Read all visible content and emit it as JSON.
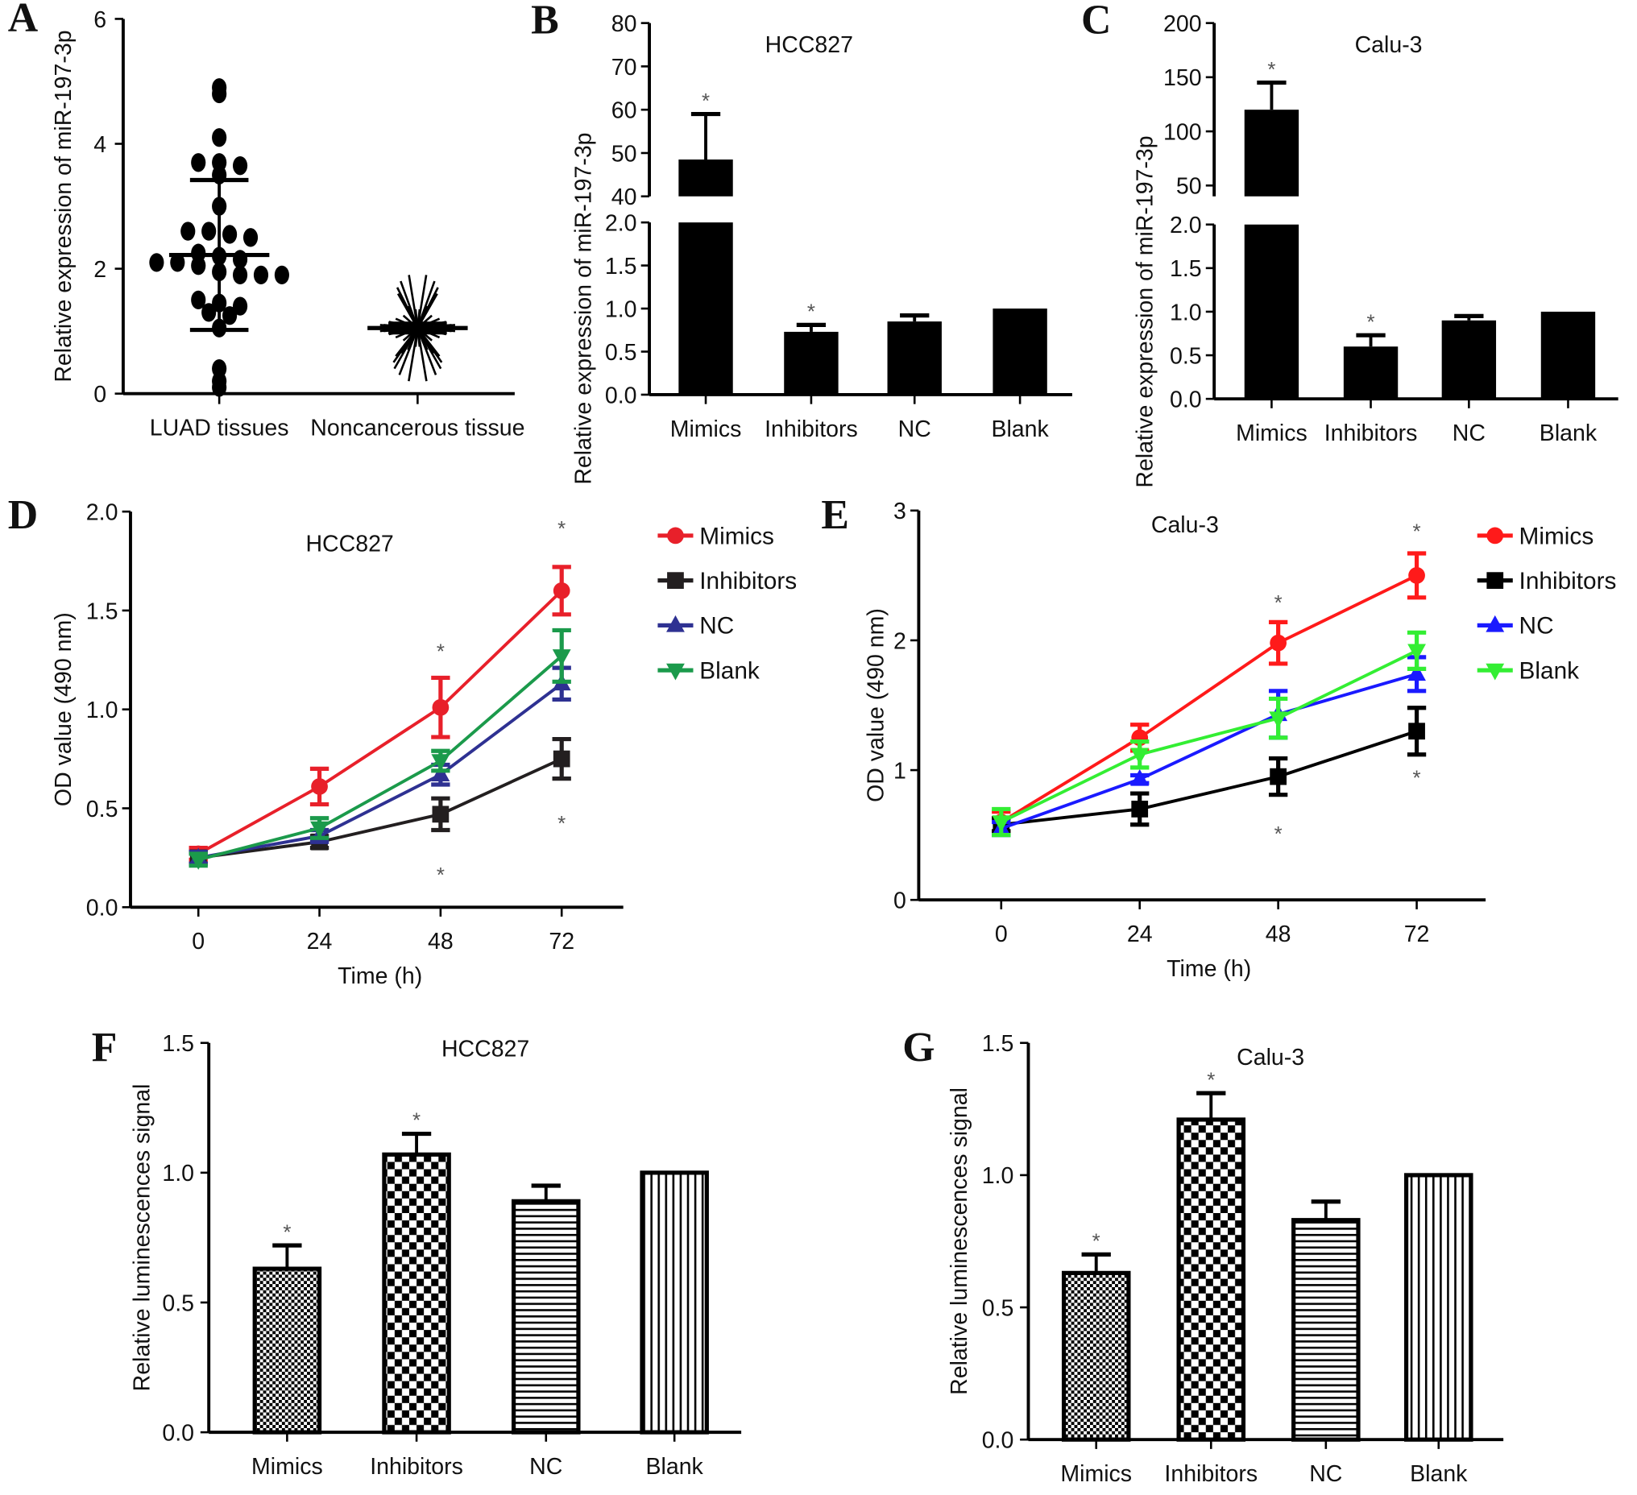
{
  "chart_data": [
    {
      "panel_label": "A",
      "type": "scatter",
      "title": "",
      "xlabel": "",
      "ylabel": "Relative expression of miR-197-3p",
      "ylim": [
        0,
        6
      ],
      "yticks": [
        "0",
        "2",
        "4",
        "6"
      ],
      "categories": [
        "LUAD tissues",
        "Noncancerous tissue"
      ],
      "groups": [
        {
          "name": "LUAD tissues",
          "mean": 2.22,
          "sd_upper": 3.42,
          "sd_lower": 1.02,
          "values": [
            4.9,
            4.8,
            4.1,
            3.7,
            3.7,
            3.65,
            3.5,
            3.0,
            2.6,
            2.6,
            2.55,
            2.5,
            2.25,
            2.2,
            2.15,
            2.1,
            2.1,
            2.05,
            1.95,
            1.9,
            1.9,
            1.9,
            1.5,
            1.45,
            1.4,
            1.3,
            1.25,
            1.05,
            0.4,
            0.2,
            0.1
          ]
        },
        {
          "name": "Noncancerous tissue",
          "mean": 1.05,
          "sd_upper": 1.12,
          "sd_lower": 0.98,
          "values": [
            0.2,
            0.3,
            0.4,
            0.5,
            0.6,
            0.65,
            0.7,
            0.75,
            0.8,
            0.85,
            0.9,
            0.95,
            1.0,
            1.0,
            1.05,
            1.05,
            1.1,
            1.1,
            1.15,
            1.2,
            1.25,
            1.3,
            1.35,
            1.4,
            1.5,
            1.6,
            1.7,
            1.8,
            1.9
          ]
        }
      ],
      "marker_color": "#000000"
    },
    {
      "panel_label": "B",
      "type": "bar",
      "title": "HCC827",
      "broken_axis": true,
      "xlabel": "",
      "ylabel": "Relative expression of miR-197-3p",
      "ylim_lower": [
        0,
        2.0
      ],
      "ylim_upper": [
        40,
        80
      ],
      "yticks_lower": [
        "0.0",
        "0.5",
        "1.0",
        "1.5",
        "2.0"
      ],
      "yticks_upper": [
        "40",
        "50",
        "60",
        "70",
        "80"
      ],
      "categories": [
        "Mimics",
        "Inhibitors",
        "NC",
        "Blank"
      ],
      "values": [
        48.5,
        0.73,
        0.85,
        1.0
      ],
      "errors": [
        10.5,
        0.08,
        0.07,
        0
      ],
      "significant": [
        true,
        true,
        false,
        false
      ],
      "annotation": "*",
      "fill": "solid",
      "bar_color": "#000000"
    },
    {
      "panel_label": "C",
      "type": "bar",
      "title": "Calu-3",
      "broken_axis": true,
      "xlabel": "",
      "ylabel": "Relative expression of miR-197-3p",
      "ylim_lower": [
        0,
        2.0
      ],
      "ylim_upper": [
        40,
        200
      ],
      "yticks_lower": [
        "0.0",
        "0.5",
        "1.0",
        "1.5",
        "2.0"
      ],
      "yticks_upper": [
        "50",
        "100",
        "150",
        "200"
      ],
      "categories": [
        "Mimics",
        "Inhibitors",
        "NC",
        "Blank"
      ],
      "values": [
        120,
        0.6,
        0.9,
        1.0
      ],
      "errors": [
        25,
        0.13,
        0.05,
        0
      ],
      "significant": [
        true,
        true,
        false,
        false
      ],
      "annotation": "*",
      "fill": "solid",
      "bar_color": "#000000"
    },
    {
      "panel_label": "D",
      "type": "line",
      "title": "HCC827",
      "xlabel": "Time (h)",
      "ylabel": "OD value (490 nm)",
      "x": [
        0,
        24,
        48,
        72
      ],
      "xticks": [
        "0",
        "24",
        "48",
        "72"
      ],
      "ylim": [
        0,
        2.0
      ],
      "yticks": [
        "0.0",
        "0.5",
        "1.0",
        "1.5",
        "2.0"
      ],
      "legend_position": "right",
      "series": [
        {
          "name": "Mimics",
          "color": "#e8202a",
          "marker": "circle",
          "values": [
            0.27,
            0.61,
            1.01,
            1.6
          ],
          "errors": [
            0.03,
            0.09,
            0.15,
            0.12
          ]
        },
        {
          "name": "Inhibitors",
          "color": "#231f20",
          "marker": "square",
          "values": [
            0.25,
            0.33,
            0.47,
            0.75
          ],
          "errors": [
            0.03,
            0.03,
            0.08,
            0.1
          ]
        },
        {
          "name": "NC",
          "color": "#2e3192",
          "marker": "triangle-up",
          "values": [
            0.25,
            0.36,
            0.67,
            1.13
          ],
          "errors": [
            0.03,
            0.03,
            0.05,
            0.08
          ]
        },
        {
          "name": "Blank",
          "color": "#1b9a4b",
          "marker": "triangle-down",
          "values": [
            0.24,
            0.4,
            0.74,
            1.27
          ],
          "errors": [
            0.03,
            0.05,
            0.05,
            0.13
          ]
        }
      ],
      "annotations": [
        {
          "text": "*",
          "x": 48,
          "y": 1.3
        },
        {
          "text": "*",
          "x": 48,
          "y": 0.17
        },
        {
          "text": "*",
          "x": 72,
          "y": 1.92
        },
        {
          "text": "*",
          "x": 72,
          "y": 0.43
        }
      ]
    },
    {
      "panel_label": "E",
      "type": "line",
      "title": "Calu-3",
      "xlabel": "Time (h)",
      "ylabel": "OD value (490 nm)",
      "x": [
        0,
        24,
        48,
        72
      ],
      "xticks": [
        "0",
        "24",
        "48",
        "72"
      ],
      "ylim": [
        0,
        3
      ],
      "yticks": [
        "0",
        "1",
        "2",
        "3"
      ],
      "legend_position": "right",
      "series": [
        {
          "name": "Mimics",
          "color": "#ff1a1a",
          "marker": "circle",
          "values": [
            0.6,
            1.25,
            1.98,
            2.5
          ],
          "errors": [
            0.08,
            0.1,
            0.16,
            0.17
          ]
        },
        {
          "name": "Inhibitors",
          "color": "#000000",
          "marker": "square",
          "values": [
            0.58,
            0.7,
            0.95,
            1.3
          ],
          "errors": [
            0.05,
            0.12,
            0.14,
            0.18
          ]
        },
        {
          "name": "NC",
          "color": "#1a1aff",
          "marker": "triangle-up",
          "values": [
            0.55,
            0.93,
            1.43,
            1.74
          ],
          "errors": [
            0.05,
            0.03,
            0.18,
            0.13
          ]
        },
        {
          "name": "Blank",
          "color": "#33ee33",
          "marker": "triangle-down",
          "values": [
            0.6,
            1.12,
            1.4,
            1.92
          ],
          "errors": [
            0.1,
            0.1,
            0.15,
            0.14
          ]
        }
      ],
      "annotations": [
        {
          "text": "*",
          "x": 48,
          "y": 2.3
        },
        {
          "text": "*",
          "x": 48,
          "y": 0.52
        },
        {
          "text": "*",
          "x": 72,
          "y": 2.85
        },
        {
          "text": "*",
          "x": 72,
          "y": 0.95
        }
      ]
    },
    {
      "panel_label": "F",
      "type": "bar",
      "title": "HCC827",
      "xlabel": "",
      "ylabel": "Relative luminescences signal",
      "ylim": [
        0,
        1.5
      ],
      "yticks": [
        "0.0",
        "0.5",
        "1.0",
        "1.5"
      ],
      "categories": [
        "Mimics",
        "Inhibitors",
        "NC",
        "Blank"
      ],
      "values": [
        0.63,
        1.07,
        0.89,
        1.0
      ],
      "errors": [
        0.09,
        0.08,
        0.06,
        0
      ],
      "significant": [
        true,
        true,
        false,
        false
      ],
      "annotation": "*",
      "fill": [
        "fine-crosshatch",
        "checkerboard",
        "horizontal-lines",
        "vertical-lines"
      ]
    },
    {
      "panel_label": "G",
      "type": "bar",
      "title": "Calu-3",
      "xlabel": "",
      "ylabel": "Relative luminescences signal",
      "ylim": [
        0,
        1.5
      ],
      "yticks": [
        "0.0",
        "0.5",
        "1.0",
        "1.5"
      ],
      "categories": [
        "Mimics",
        "Inhibitors",
        "NC",
        "Blank"
      ],
      "values": [
        0.63,
        1.21,
        0.83,
        1.0
      ],
      "errors": [
        0.07,
        0.1,
        0.07,
        0
      ],
      "significant": [
        true,
        true,
        false,
        false
      ],
      "annotation": "*",
      "fill": [
        "fine-crosshatch",
        "checkerboard",
        "horizontal-lines",
        "vertical-lines"
      ]
    }
  ]
}
